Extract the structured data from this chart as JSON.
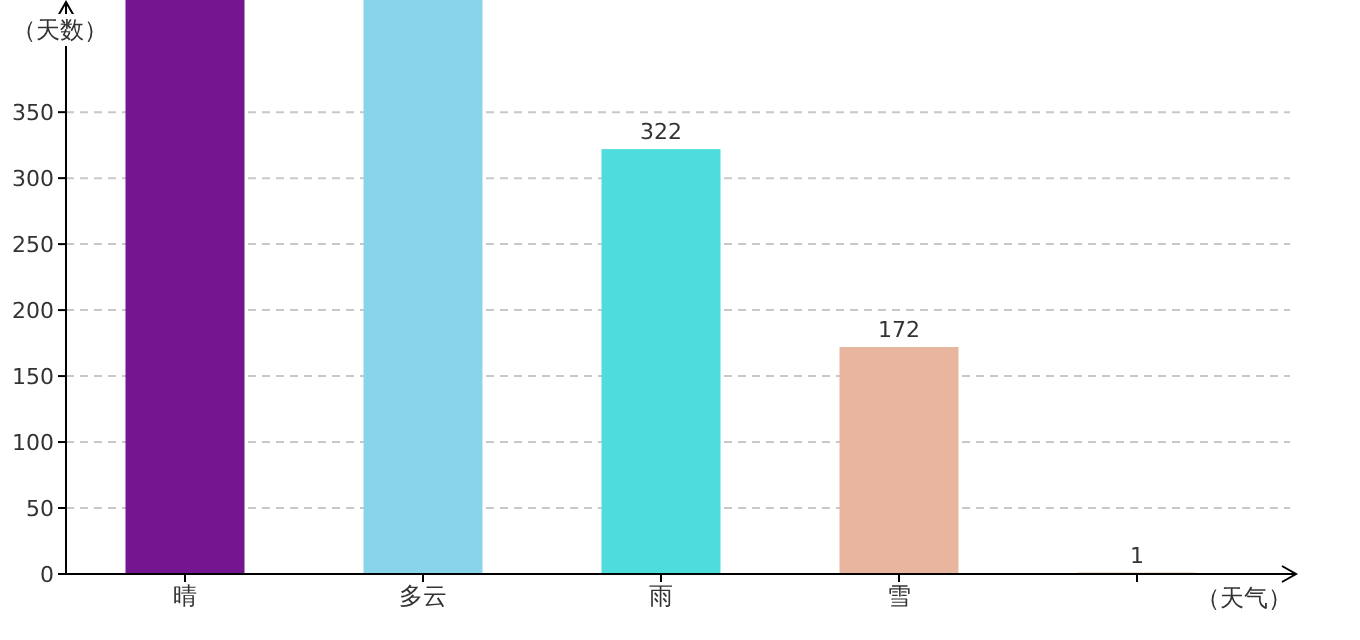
{
  "chart_data": {
    "type": "bar",
    "xlabel": "（天气）",
    "ylabel": "（天数）",
    "categories": [
      "晴",
      "多云",
      "雨",
      "雪",
      null
    ],
    "values": [
      435,
      435,
      322,
      172,
      1
    ],
    "colors": [
      "#74168f",
      "#8ad4eb",
      "#4edcdc",
      "#e8b59e",
      "#d9a06e"
    ],
    "value_labels": [
      null,
      null,
      "322",
      "172",
      "1"
    ],
    "ylim": [
      0,
      435
    ],
    "yticks": [
      0,
      50,
      100,
      150,
      200,
      250,
      300,
      350
    ],
    "grid": "y"
  }
}
